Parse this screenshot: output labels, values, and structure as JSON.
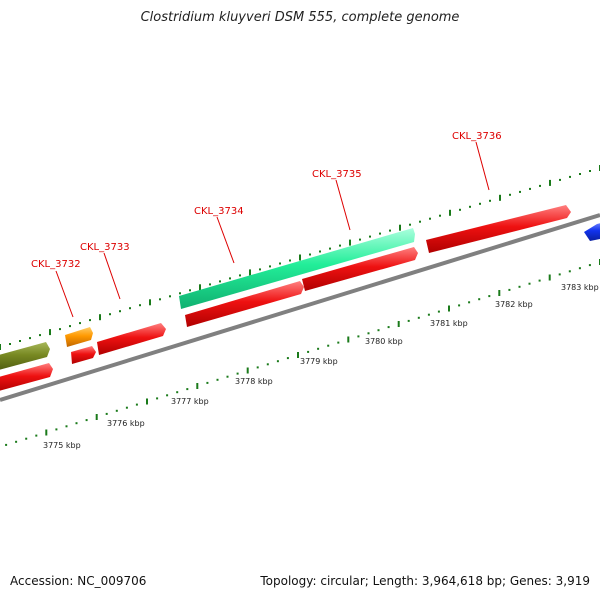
{
  "title": "Clostridium kluyveri DSM 555, complete genome",
  "footer": {
    "accession": "Accession: NC_009706",
    "summary": "Topology: circular; Length: 3,964,618 bp; Genes: 3,919"
  },
  "colors": {
    "backbone": "#808080",
    "tick": "#1a7a1a",
    "label": "#dd0000",
    "gene_red": "#ee1111",
    "gene_cyan": "#22ee99",
    "gene_orange": "#ff9900",
    "gene_olive": "#778822",
    "gene_blue": "#1133ee"
  },
  "scale_labels": [
    "3775 kbp",
    "3776 kbp",
    "3777 kbp",
    "3778 kbp",
    "3779 kbp",
    "3780 kbp",
    "3781 kbp",
    "3782 kbp",
    "3783 kbp"
  ],
  "gene_labels": [
    "CKL_3732",
    "CKL_3733",
    "CKL_3734",
    "CKL_3735",
    "CKL_3736"
  ]
}
